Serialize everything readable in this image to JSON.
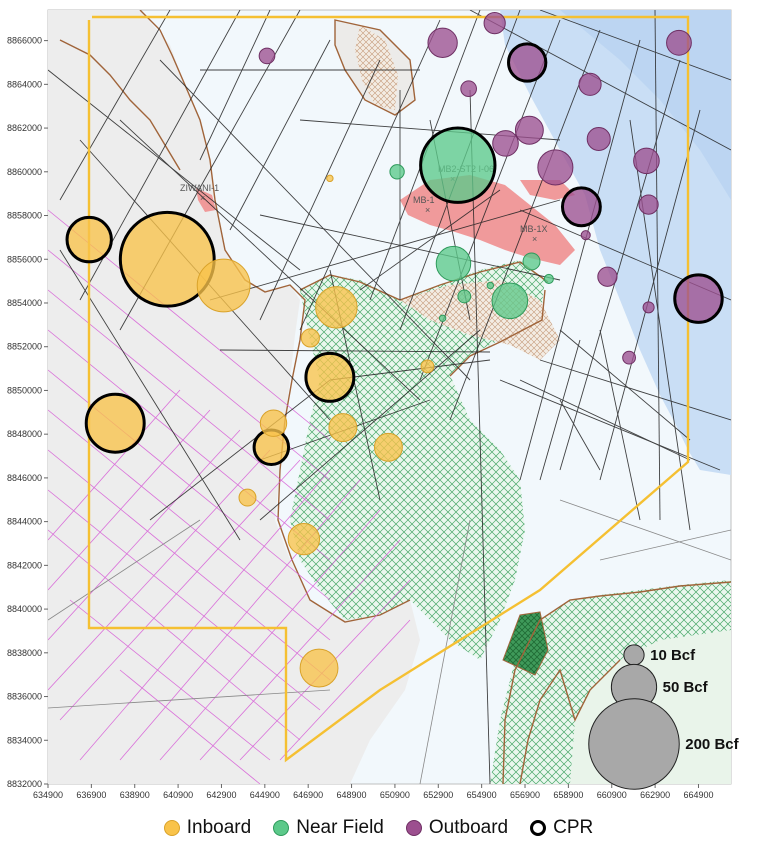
{
  "map": {
    "y_ticks": [
      "8866000",
      "8864000",
      "8862000",
      "8860000",
      "8858000",
      "8856000",
      "8854000",
      "8852000",
      "8850000",
      "8848000",
      "8846000",
      "8844000",
      "8842000",
      "8840000",
      "8838000",
      "8836000",
      "8834000",
      "8832000"
    ],
    "x_ticks": [
      "634900",
      "636900",
      "638900",
      "640900",
      "642900",
      "644900",
      "646900",
      "648900",
      "650900",
      "652900",
      "654900",
      "656900",
      "658900",
      "660900",
      "662900",
      "664900"
    ],
    "well_labels": [
      "ZIWANI-1",
      "MB-1",
      "MB-1X",
      "MB2-ST2 I-06"
    ],
    "extent": {
      "x_min": 634900,
      "x_max": 666400,
      "y_min": 8832000,
      "y_max": 8867400
    }
  },
  "scale": {
    "items": [
      {
        "label": "10 Bcf",
        "bcf": 10
      },
      {
        "label": "50 Bcf",
        "bcf": 50
      },
      {
        "label": "200 Bcf",
        "bcf": 200
      }
    ]
  },
  "legend": {
    "items": [
      {
        "label": "Inboard",
        "color": "#f9c34a",
        "stroke": "#d9a22a",
        "cpr": false
      },
      {
        "label": "Near Field",
        "color": "#5cc98a",
        "stroke": "#2e9a5b",
        "cpr": false
      },
      {
        "label": "Outboard",
        "color": "#9c4f8f",
        "stroke": "#6e2f63",
        "cpr": false
      },
      {
        "label": "CPR",
        "color": "#ffffff",
        "stroke": "#000000",
        "cpr": true
      }
    ]
  },
  "prospects": [
    {
      "x": 636800,
      "y": 8856900,
      "bcf": 48,
      "category": "Inboard",
      "cpr": true
    },
    {
      "x": 640400,
      "y": 8856000,
      "bcf": 215,
      "category": "Inboard",
      "cpr": true
    },
    {
      "x": 643000,
      "y": 8854800,
      "bcf": 68,
      "category": "Inboard",
      "cpr": false
    },
    {
      "x": 638000,
      "y": 8848500,
      "bcf": 82,
      "category": "Inboard",
      "cpr": true
    },
    {
      "x": 648200,
      "y": 8853800,
      "bcf": 42,
      "category": "Inboard",
      "cpr": false
    },
    {
      "x": 647000,
      "y": 8852400,
      "bcf": 8,
      "category": "Inboard",
      "cpr": false
    },
    {
      "x": 647900,
      "y": 8850600,
      "bcf": 56,
      "category": "Inboard",
      "cpr": true
    },
    {
      "x": 645300,
      "y": 8848500,
      "bcf": 17,
      "category": "Inboard",
      "cpr": false
    },
    {
      "x": 645200,
      "y": 8847400,
      "bcf": 29,
      "category": "Inboard",
      "cpr": true
    },
    {
      "x": 648500,
      "y": 8848300,
      "bcf": 19,
      "category": "Inboard",
      "cpr": false
    },
    {
      "x": 650600,
      "y": 8847400,
      "bcf": 19,
      "category": "Inboard",
      "cpr": false
    },
    {
      "x": 644100,
      "y": 8845100,
      "bcf": 7,
      "category": "Inboard",
      "cpr": false
    },
    {
      "x": 646700,
      "y": 8843200,
      "bcf": 24,
      "category": "Inboard",
      "cpr": false
    },
    {
      "x": 647400,
      "y": 8837300,
      "bcf": 35,
      "category": "Inboard",
      "cpr": false
    },
    {
      "x": 647900,
      "y": 8859700,
      "bcf": 1,
      "category": "Inboard",
      "cpr": false
    },
    {
      "x": 652400,
      "y": 8851100,
      "bcf": 4,
      "category": "Inboard",
      "cpr": false
    },
    {
      "x": 653800,
      "y": 8860300,
      "bcf": 135,
      "category": "Near Field",
      "cpr": true
    },
    {
      "x": 651000,
      "y": 8860000,
      "bcf": 5,
      "category": "Near Field",
      "cpr": false
    },
    {
      "x": 653600,
      "y": 8855800,
      "bcf": 29,
      "category": "Near Field",
      "cpr": false
    },
    {
      "x": 656200,
      "y": 8854100,
      "bcf": 31,
      "category": "Near Field",
      "cpr": false
    },
    {
      "x": 657200,
      "y": 8855900,
      "bcf": 7,
      "category": "Near Field",
      "cpr": false
    },
    {
      "x": 654100,
      "y": 8854300,
      "bcf": 4,
      "category": "Near Field",
      "cpr": false
    },
    {
      "x": 655300,
      "y": 8854800,
      "bcf": 1,
      "category": "Near Field",
      "cpr": false
    },
    {
      "x": 658000,
      "y": 8855100,
      "bcf": 2,
      "category": "Near Field",
      "cpr": false
    },
    {
      "x": 653100,
      "y": 8853300,
      "bcf": 1,
      "category": "Near Field",
      "cpr": false
    },
    {
      "x": 653100,
      "y": 8865900,
      "bcf": 21,
      "category": "Outboard",
      "cpr": false
    },
    {
      "x": 655500,
      "y": 8866800,
      "bcf": 11,
      "category": "Outboard",
      "cpr": false
    },
    {
      "x": 657000,
      "y": 8865000,
      "bcf": 34,
      "category": "Outboard",
      "cpr": true
    },
    {
      "x": 654300,
      "y": 8863800,
      "bcf": 6,
      "category": "Outboard",
      "cpr": false
    },
    {
      "x": 659900,
      "y": 8864000,
      "bcf": 12,
      "category": "Outboard",
      "cpr": false
    },
    {
      "x": 664000,
      "y": 8865900,
      "bcf": 15,
      "category": "Outboard",
      "cpr": false
    },
    {
      "x": 645000,
      "y": 8865300,
      "bcf": 6,
      "category": "Outboard",
      "cpr": false
    },
    {
      "x": 657100,
      "y": 8861900,
      "bcf": 19,
      "category": "Outboard",
      "cpr": false
    },
    {
      "x": 656000,
      "y": 8861300,
      "bcf": 16,
      "category": "Outboard",
      "cpr": false
    },
    {
      "x": 658300,
      "y": 8860200,
      "bcf": 30,
      "category": "Outboard",
      "cpr": false
    },
    {
      "x": 660300,
      "y": 8861500,
      "bcf": 13,
      "category": "Outboard",
      "cpr": false
    },
    {
      "x": 662500,
      "y": 8860500,
      "bcf": 16,
      "category": "Outboard",
      "cpr": false
    },
    {
      "x": 659500,
      "y": 8858400,
      "bcf": 35,
      "category": "Outboard",
      "cpr": true
    },
    {
      "x": 662600,
      "y": 8858500,
      "bcf": 9,
      "category": "Outboard",
      "cpr": false
    },
    {
      "x": 659700,
      "y": 8857100,
      "bcf": 2,
      "category": "Outboard",
      "cpr": false
    },
    {
      "x": 660700,
      "y": 8855200,
      "bcf": 9,
      "category": "Outboard",
      "cpr": false
    },
    {
      "x": 664900,
      "y": 8854200,
      "bcf": 55,
      "category": "Outboard",
      "cpr": true
    },
    {
      "x": 662600,
      "y": 8853800,
      "bcf": 3,
      "category": "Outboard",
      "cpr": false
    },
    {
      "x": 661700,
      "y": 8851500,
      "bcf": 4,
      "category": "Outboard",
      "cpr": false
    }
  ]
}
